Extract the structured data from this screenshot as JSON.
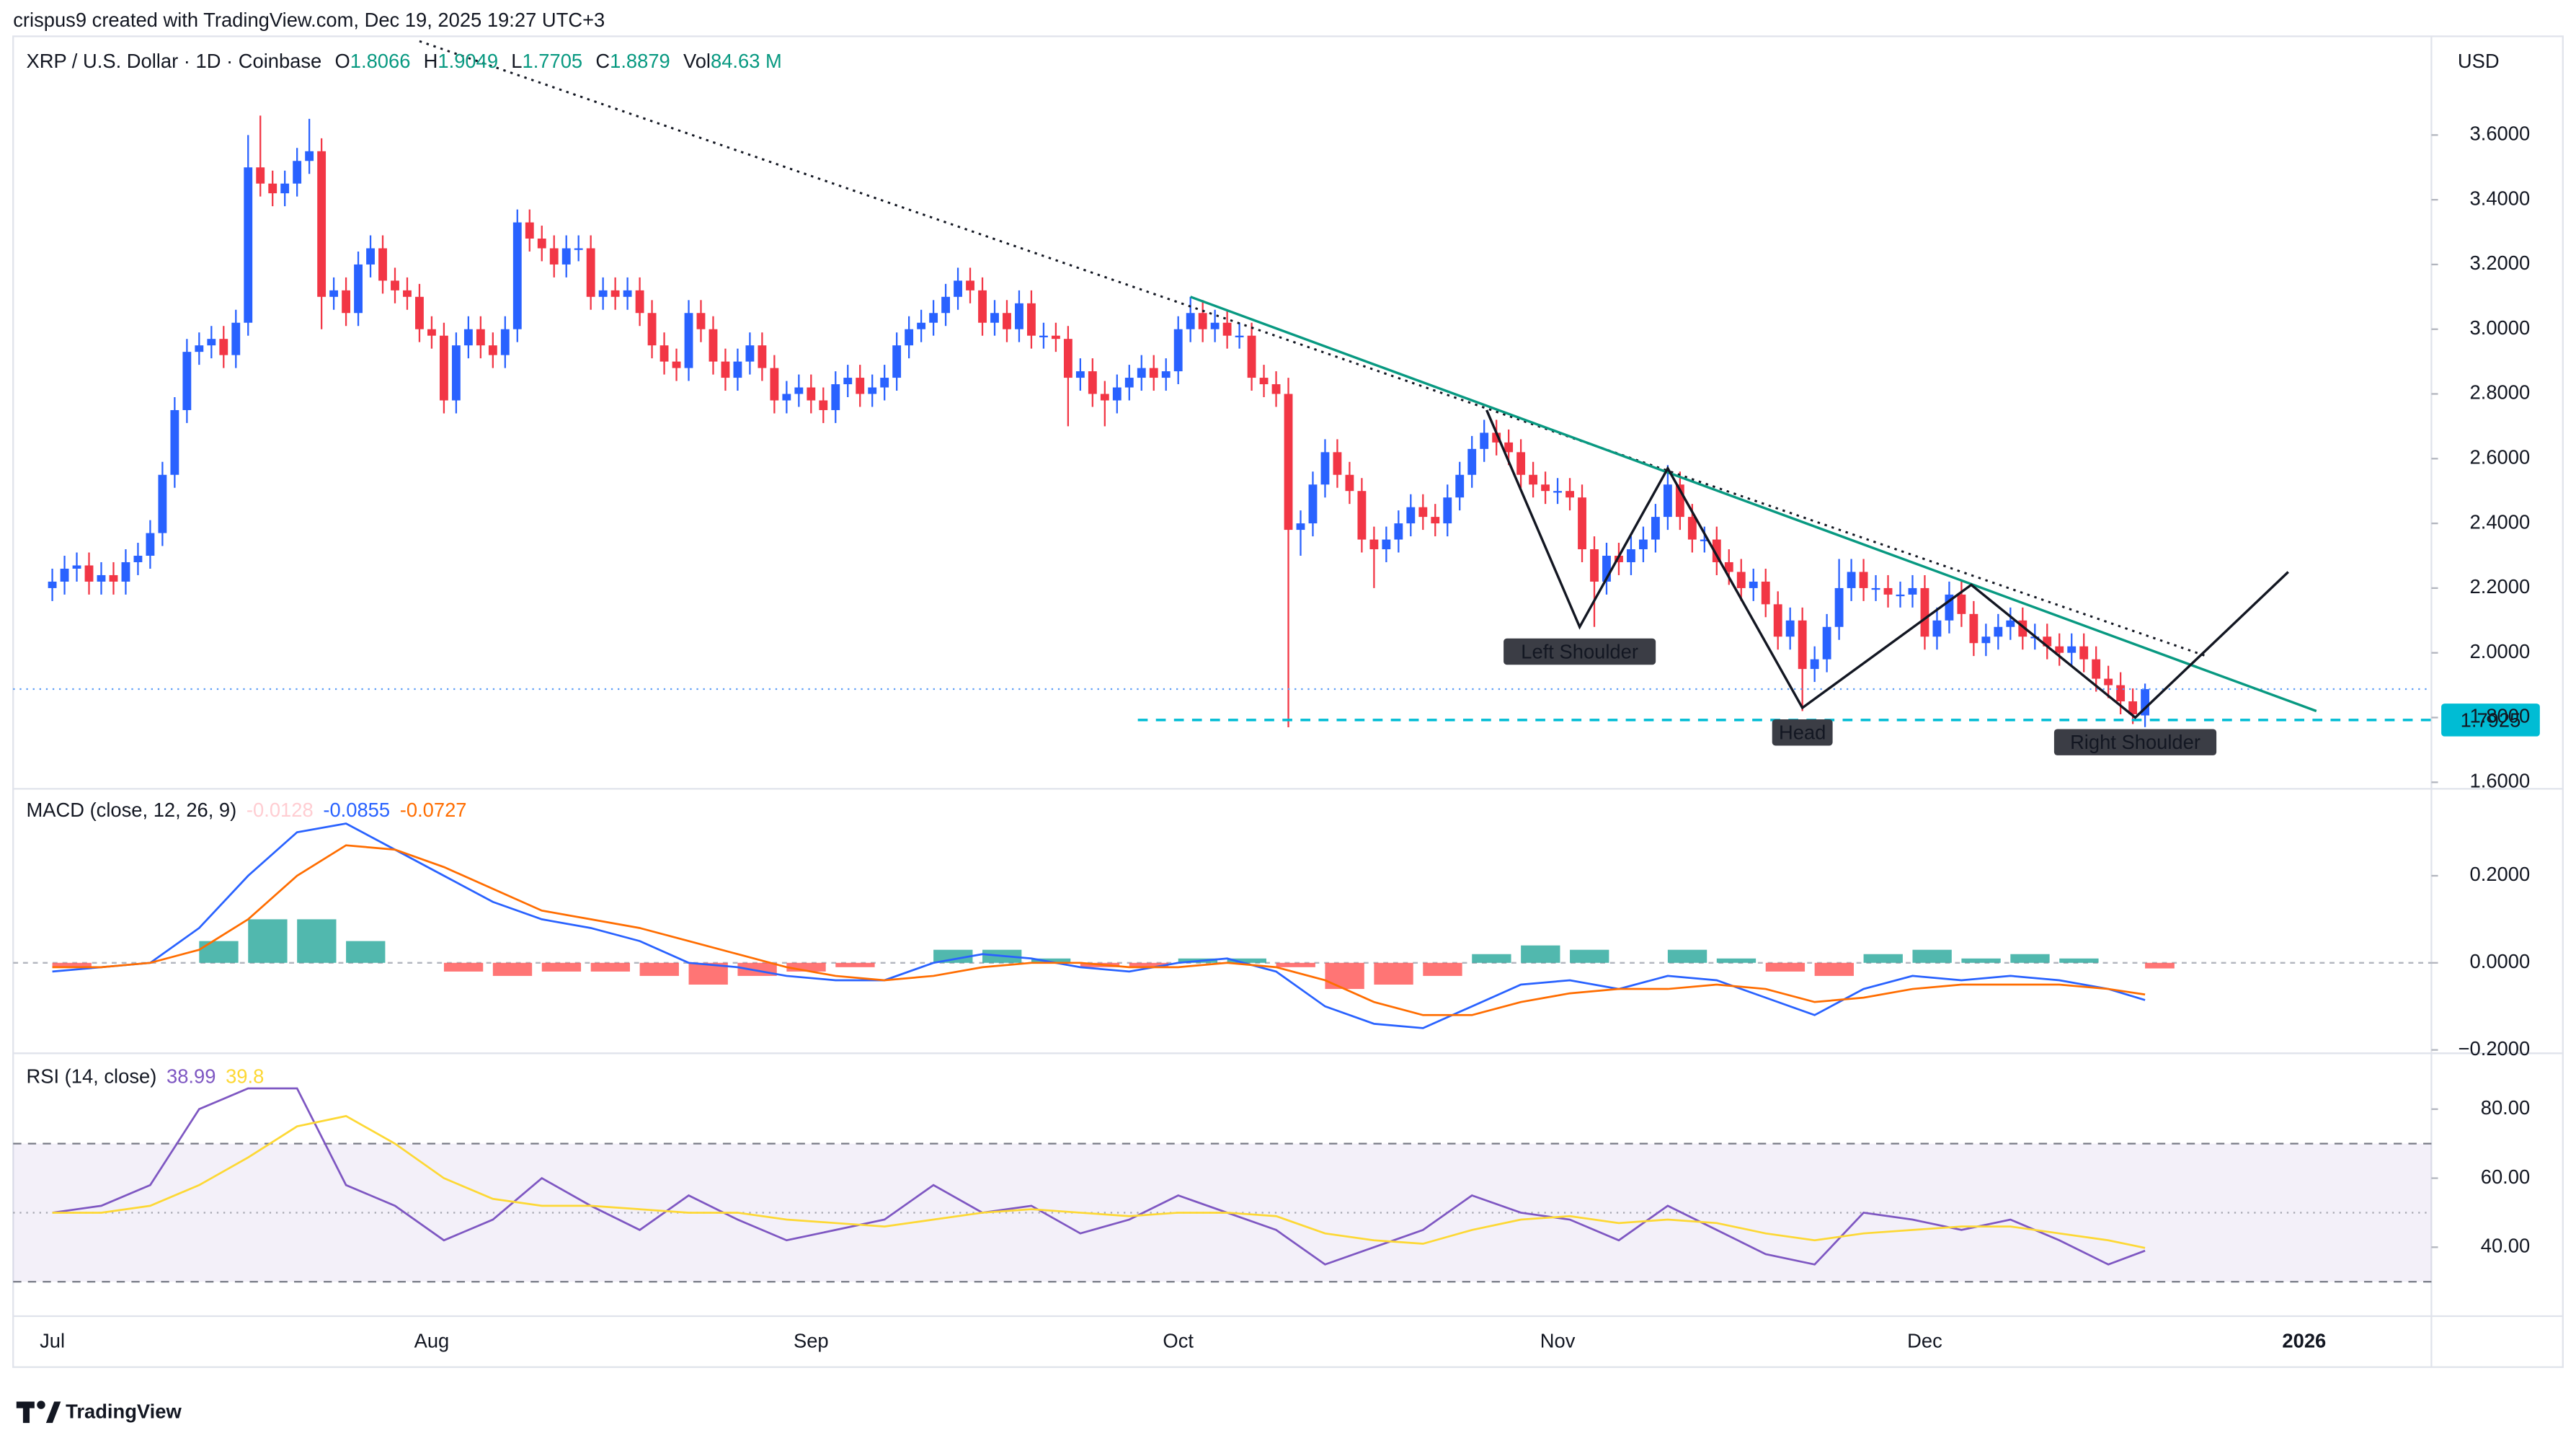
{
  "header": {
    "author_line": "crispus9 created with TradingView.com, Dec 19, 2025 19:27 UTC+3",
    "brand": "TradingView"
  },
  "chart_data": [
    {
      "type": "candlestick",
      "title": "XRP / U.S. Dollar · 1D · Coinbase",
      "currency": "USD",
      "ohlc_labels": [
        "O",
        "H",
        "L",
        "C"
      ],
      "volume_label": "Vol",
      "volume": "84.63 M",
      "up_color": "#2962ff",
      "down_color": "#f23645",
      "value_color": "#089981",
      "open": [
        2.2,
        2.22,
        2.26,
        2.27,
        2.22,
        2.24,
        2.22,
        2.28,
        2.3,
        2.37,
        2.55,
        2.75,
        2.93,
        2.95,
        2.97,
        2.92,
        3.02,
        3.5,
        3.45,
        3.42,
        3.45,
        3.52,
        3.55,
        3.1,
        3.12,
        3.05,
        3.2,
        3.25,
        3.15,
        3.12,
        3.1,
        3.0,
        2.98,
        2.78,
        2.95,
        3.0,
        2.95,
        2.92,
        3.0,
        3.33,
        3.28,
        3.25,
        3.2,
        3.25,
        3.25,
        3.1,
        3.12,
        3.1,
        3.12,
        3.05,
        2.95,
        2.9,
        2.88,
        3.05,
        3.0,
        2.9,
        2.85,
        2.9,
        2.95,
        2.88,
        2.78,
        2.8,
        2.82,
        2.78,
        2.75,
        2.83,
        2.85,
        2.8,
        2.82,
        2.85,
        2.95,
        3.0,
        3.02,
        3.05,
        3.1,
        3.15,
        3.12,
        3.02,
        3.05,
        3.0,
        3.08,
        2.98,
        2.98,
        2.97,
        2.85,
        2.87,
        2.8,
        2.78,
        2.82,
        2.85,
        2.88,
        2.85,
        2.87,
        3.0,
        3.05,
        3.0,
        3.02,
        2.98,
        2.98,
        2.85,
        2.83,
        2.8,
        2.38,
        2.4,
        2.52,
        2.62,
        2.55,
        2.5,
        2.35,
        2.32,
        2.35,
        2.4,
        2.45,
        2.42,
        2.4,
        2.48,
        2.55,
        2.63,
        2.68,
        2.65,
        2.62,
        2.55,
        2.52,
        2.5,
        2.5,
        2.48,
        2.32,
        2.22,
        2.3,
        2.28,
        2.32,
        2.35,
        2.42,
        2.52,
        2.42,
        2.35,
        2.35,
        2.28,
        2.25,
        2.2,
        2.22,
        2.15,
        2.05,
        2.1,
        1.95,
        1.98,
        2.08,
        2.2,
        2.25,
        2.2,
        2.2,
        2.18,
        2.18,
        2.2,
        2.05,
        2.1,
        2.18,
        2.12,
        2.03,
        2.05,
        2.08,
        2.1,
        2.05,
        2.05,
        2.02,
        2.0,
        2.02,
        1.98,
        1.92,
        1.9,
        1.85,
        1.8066
      ],
      "high": [
        2.26,
        2.3,
        2.31,
        2.31,
        2.28,
        2.28,
        2.32,
        2.34,
        2.41,
        2.59,
        2.79,
        2.97,
        2.99,
        3.01,
        3.01,
        3.06,
        3.6,
        3.66,
        3.49,
        3.49,
        3.56,
        3.65,
        3.59,
        3.16,
        3.16,
        3.24,
        3.29,
        3.29,
        3.19,
        3.16,
        3.14,
        3.04,
        3.02,
        2.99,
        3.04,
        3.04,
        2.99,
        3.04,
        3.37,
        3.37,
        3.32,
        3.29,
        3.29,
        3.29,
        3.29,
        3.16,
        3.16,
        3.16,
        3.16,
        3.09,
        2.99,
        2.94,
        3.09,
        3.09,
        3.04,
        2.94,
        2.94,
        2.99,
        2.99,
        2.92,
        2.84,
        2.86,
        2.86,
        2.82,
        2.87,
        2.89,
        2.89,
        2.86,
        2.89,
        2.99,
        3.04,
        3.06,
        3.09,
        3.14,
        3.19,
        3.19,
        3.16,
        3.09,
        3.09,
        3.12,
        3.12,
        3.02,
        3.02,
        3.01,
        2.91,
        2.91,
        2.84,
        2.86,
        2.89,
        2.92,
        2.92,
        2.91,
        3.04,
        3.1,
        3.09,
        3.06,
        3.06,
        3.02,
        3.02,
        2.89,
        2.87,
        2.85,
        2.44,
        2.56,
        2.66,
        2.66,
        2.59,
        2.54,
        2.39,
        2.39,
        2.44,
        2.49,
        2.49,
        2.46,
        2.52,
        2.59,
        2.67,
        2.72,
        2.72,
        2.69,
        2.66,
        2.59,
        2.56,
        2.54,
        2.54,
        2.52,
        2.36,
        2.34,
        2.34,
        2.36,
        2.39,
        2.46,
        2.58,
        2.56,
        2.46,
        2.39,
        2.39,
        2.32,
        2.29,
        2.26,
        2.26,
        2.19,
        2.14,
        2.14,
        2.02,
        2.12,
        2.29,
        2.29,
        2.29,
        2.24,
        2.24,
        2.22,
        2.24,
        2.24,
        2.14,
        2.22,
        2.22,
        2.16,
        2.09,
        2.12,
        2.14,
        2.14,
        2.09,
        2.09,
        2.06,
        2.06,
        2.06,
        2.02,
        1.96,
        1.94,
        1.89,
        1.9049
      ],
      "low": [
        2.16,
        2.18,
        2.22,
        2.18,
        2.18,
        2.18,
        2.18,
        2.24,
        2.26,
        2.33,
        2.51,
        2.71,
        2.89,
        2.91,
        2.88,
        2.88,
        2.98,
        3.41,
        3.38,
        3.38,
        3.41,
        3.48,
        3.0,
        3.06,
        3.01,
        3.01,
        3.16,
        3.11,
        3.08,
        3.06,
        2.96,
        2.94,
        2.74,
        2.74,
        2.91,
        2.91,
        2.88,
        2.88,
        2.96,
        3.24,
        3.21,
        3.16,
        3.16,
        3.21,
        3.06,
        3.06,
        3.06,
        3.06,
        3.01,
        2.91,
        2.86,
        2.84,
        2.84,
        2.96,
        2.86,
        2.81,
        2.81,
        2.86,
        2.84,
        2.74,
        2.74,
        2.76,
        2.74,
        2.71,
        2.71,
        2.79,
        2.76,
        2.76,
        2.78,
        2.81,
        2.91,
        2.96,
        2.98,
        3.01,
        3.06,
        3.08,
        2.98,
        2.98,
        2.96,
        2.96,
        2.94,
        2.94,
        2.93,
        2.7,
        2.81,
        2.76,
        2.7,
        2.74,
        2.78,
        2.81,
        2.81,
        2.81,
        2.83,
        2.96,
        2.96,
        2.96,
        2.94,
        2.94,
        2.81,
        2.79,
        2.76,
        1.77,
        2.3,
        2.36,
        2.48,
        2.51,
        2.46,
        2.31,
        2.2,
        2.28,
        2.31,
        2.36,
        2.38,
        2.36,
        2.36,
        2.44,
        2.51,
        2.59,
        2.61,
        2.58,
        2.51,
        2.48,
        2.46,
        2.46,
        2.44,
        2.28,
        2.08,
        2.18,
        2.24,
        2.24,
        2.28,
        2.31,
        2.38,
        2.38,
        2.31,
        2.31,
        2.24,
        2.21,
        2.16,
        2.16,
        2.11,
        2.01,
        2.01,
        1.82,
        1.91,
        1.94,
        2.04,
        2.16,
        2.16,
        2.16,
        2.14,
        2.14,
        2.14,
        2.01,
        2.01,
        2.06,
        2.08,
        1.99,
        1.99,
        2.01,
        2.04,
        2.01,
        2.01,
        1.98,
        1.96,
        1.96,
        1.94,
        1.88,
        1.86,
        1.81,
        1.78,
        1.7705
      ],
      "close": [
        2.22,
        2.26,
        2.27,
        2.22,
        2.24,
        2.22,
        2.28,
        2.3,
        2.37,
        2.55,
        2.75,
        2.93,
        2.95,
        2.97,
        2.92,
        3.02,
        3.5,
        3.45,
        3.42,
        3.45,
        3.52,
        3.55,
        3.1,
        3.12,
        3.05,
        3.2,
        3.25,
        3.15,
        3.12,
        3.1,
        3.0,
        2.98,
        2.78,
        2.95,
        3.0,
        2.95,
        2.92,
        3.0,
        3.33,
        3.28,
        3.25,
        3.2,
        3.25,
        3.25,
        3.1,
        3.12,
        3.1,
        3.12,
        3.05,
        2.95,
        2.9,
        2.88,
        3.05,
        3.0,
        2.9,
        2.85,
        2.9,
        2.95,
        2.88,
        2.78,
        2.8,
        2.82,
        2.78,
        2.75,
        2.83,
        2.85,
        2.8,
        2.82,
        2.85,
        2.95,
        3.0,
        3.02,
        3.05,
        3.1,
        3.15,
        3.12,
        3.02,
        3.05,
        3.0,
        3.08,
        2.98,
        2.98,
        2.97,
        2.85,
        2.87,
        2.8,
        2.78,
        2.82,
        2.85,
        2.88,
        2.85,
        2.87,
        3.0,
        3.05,
        3.0,
        3.02,
        2.98,
        2.98,
        2.85,
        2.83,
        2.8,
        2.38,
        2.4,
        2.52,
        2.62,
        2.55,
        2.5,
        2.35,
        2.32,
        2.35,
        2.4,
        2.45,
        2.42,
        2.4,
        2.48,
        2.55,
        2.63,
        2.68,
        2.65,
        2.62,
        2.55,
        2.52,
        2.5,
        2.5,
        2.48,
        2.32,
        2.22,
        2.3,
        2.28,
        2.32,
        2.35,
        2.42,
        2.52,
        2.42,
        2.35,
        2.35,
        2.28,
        2.25,
        2.2,
        2.22,
        2.15,
        2.05,
        2.1,
        1.95,
        1.98,
        2.08,
        2.2,
        2.25,
        2.2,
        2.2,
        2.18,
        2.18,
        2.2,
        2.05,
        2.1,
        2.18,
        2.12,
        2.03,
        2.05,
        2.08,
        2.1,
        2.05,
        2.05,
        2.02,
        2.0,
        2.02,
        1.98,
        1.92,
        1.9,
        1.85,
        1.81,
        1.8879
      ],
      "xlim": [
        -3.2,
        194.4
      ],
      "ylim": [
        1.59,
        3.905
      ],
      "xticks": [
        {
          "value": 0,
          "label": "Jul"
        },
        {
          "value": 31,
          "label": "Aug"
        },
        {
          "value": 62,
          "label": "Sep"
        },
        {
          "value": 92,
          "label": "Oct"
        },
        {
          "value": 123,
          "label": "Nov"
        },
        {
          "value": 153,
          "label": "Dec"
        },
        {
          "value": 184,
          "label": "2026"
        }
      ],
      "yticks": [
        {
          "value": 1.6,
          "label": "1.6000"
        },
        {
          "value": 1.8,
          "label": "1.8000"
        },
        {
          "value": 2,
          "label": "2.0000"
        },
        {
          "value": 2.2,
          "label": "2.2000"
        },
        {
          "value": 2.4,
          "label": "2.4000"
        },
        {
          "value": 2.6,
          "label": "2.6000"
        },
        {
          "value": 2.8,
          "label": "2.8000"
        },
        {
          "value": 3,
          "label": "3.0000"
        },
        {
          "value": 3.2,
          "label": "3.2000"
        },
        {
          "value": 3.4,
          "label": "3.4000"
        },
        {
          "value": 3.6,
          "label": "3.6000"
        }
      ],
      "levels": [
        {
          "value": 1.7925,
          "from": 88.7,
          "color": "#00bcd4"
        }
      ],
      "trendlines": [
        {
          "style": "dotted",
          "color": "#131722",
          "points": [
            [
              30,
              3.89
            ],
            [
              176,
              1.99
            ]
          ]
        },
        {
          "style": "solid",
          "color": "#089981",
          "points": [
            [
              93,
              3.1
            ],
            [
              185,
              1.82
            ]
          ]
        },
        {
          "style": "solid",
          "color": "#131722",
          "points": [
            [
              117.2,
              2.75
            ],
            [
              124.8,
              2.08
            ],
            [
              132,
              2.57
            ],
            [
              143,
              1.83
            ],
            [
              156.8,
              2.21
            ],
            [
              170.2,
              1.8
            ],
            [
              182.7,
              2.25
            ]
          ]
        }
      ],
      "annotations": [
        {
          "text": "Left Shoulder",
          "x": 124.8,
          "y": 2.08
        },
        {
          "text": "Head",
          "x": 143,
          "y": 1.83
        },
        {
          "text": "Right Shoulder",
          "x": 170.2,
          "y": 1.8
        }
      ]
    },
    {
      "type": "macd",
      "title": "MACD (close, 12, 26, 9)",
      "x": [
        0,
        4,
        8,
        12,
        16,
        20,
        24,
        28,
        32,
        36,
        40,
        44,
        48,
        52,
        56,
        60,
        64,
        68,
        72,
        76,
        80,
        84,
        88,
        92,
        96,
        100,
        104,
        108,
        112,
        116,
        120,
        124,
        128,
        132,
        136,
        140,
        144,
        148,
        152,
        156,
        160,
        164,
        168,
        171
      ],
      "series": [
        {
          "style": "bar",
          "color": "#ffcdd2",
          "color_up": "#26a69a",
          "color_down": "#ff5252",
          "values": [
            -0.01,
            0,
            0,
            0.05,
            0.1,
            0.1,
            0.05,
            0,
            -0.02,
            -0.03,
            -0.02,
            -0.02,
            -0.03,
            -0.05,
            -0.03,
            -0.02,
            -0.01,
            0,
            0.03,
            0.03,
            0.01,
            -0.01,
            -0.01,
            0.01,
            0.01,
            -0.01,
            -0.06,
            -0.05,
            -0.03,
            0.02,
            0.04,
            0.03,
            0,
            0.03,
            0.01,
            -0.02,
            -0.03,
            0.02,
            0.03,
            0.01,
            0.02,
            0.01,
            0,
            -0.0128
          ]
        },
        {
          "style": "line",
          "color": "#2962ff",
          "values": [
            -0.02,
            -0.01,
            0,
            0.08,
            0.2,
            0.3,
            0.32,
            0.26,
            0.2,
            0.14,
            0.1,
            0.08,
            0.05,
            0,
            -0.01,
            -0.03,
            -0.04,
            -0.04,
            0,
            0.02,
            0.01,
            -0.01,
            -0.02,
            0,
            0.01,
            -0.02,
            -0.1,
            -0.14,
            -0.15,
            -0.1,
            -0.05,
            -0.04,
            -0.06,
            -0.03,
            -0.04,
            -0.08,
            -0.12,
            -0.06,
            -0.03,
            -0.04,
            -0.03,
            -0.04,
            -0.06,
            -0.0855
          ]
        },
        {
          "style": "line",
          "color": "#ff6d00",
          "values": [
            -0.01,
            -0.01,
            0,
            0.03,
            0.1,
            0.2,
            0.27,
            0.26,
            0.22,
            0.17,
            0.12,
            0.1,
            0.08,
            0.05,
            0.02,
            -0.01,
            -0.03,
            -0.04,
            -0.03,
            -0.01,
            0,
            0,
            -0.01,
            -0.01,
            0,
            -0.01,
            -0.04,
            -0.09,
            -0.12,
            -0.12,
            -0.09,
            -0.07,
            -0.06,
            -0.06,
            -0.05,
            -0.06,
            -0.09,
            -0.08,
            -0.06,
            -0.05,
            -0.05,
            -0.05,
            -0.06,
            -0.0727
          ]
        }
      ],
      "baseline": 0,
      "ylim": [
        -0.204,
        0.396
      ],
      "yticks": [
        {
          "value": -0.2,
          "label": "−0.2000"
        },
        {
          "value": 0,
          "label": "0.0000"
        },
        {
          "value": 0.2,
          "label": "0.2000"
        }
      ]
    },
    {
      "type": "rsi",
      "title": "RSI (14, close)",
      "x": [
        0,
        4,
        8,
        12,
        16,
        20,
        24,
        28,
        32,
        36,
        40,
        44,
        48,
        52,
        56,
        60,
        64,
        68,
        72,
        76,
        80,
        84,
        88,
        92,
        96,
        100,
        104,
        108,
        112,
        116,
        120,
        124,
        128,
        132,
        136,
        140,
        144,
        148,
        152,
        156,
        160,
        164,
        168,
        171
      ],
      "series": [
        {
          "style": "line",
          "color": "#7e57c2",
          "values": [
            50,
            52,
            58,
            80,
            86,
            86,
            58,
            52,
            42,
            48,
            60,
            52,
            45,
            55,
            48,
            42,
            45,
            48,
            58,
            50,
            52,
            44,
            48,
            55,
            50,
            45,
            35,
            40,
            45,
            55,
            50,
            48,
            42,
            52,
            45,
            38,
            35,
            50,
            48,
            45,
            48,
            42,
            35,
            38.99
          ]
        },
        {
          "style": "line",
          "color": "#fdd835",
          "values": [
            50,
            50,
            52,
            58,
            66,
            75,
            78,
            70,
            60,
            54,
            52,
            52,
            51,
            50,
            50,
            48,
            47,
            46,
            48,
            50,
            51,
            50,
            49,
            50,
            50,
            49,
            44,
            42,
            41,
            45,
            48,
            49,
            47,
            48,
            47,
            44,
            42,
            44,
            45,
            46,
            46,
            44,
            42,
            39.8
          ]
        }
      ],
      "band": [
        30,
        70
      ],
      "midline": 50,
      "ylim": [
        20.5,
        95.7
      ],
      "yticks": [
        {
          "value": 40,
          "label": "40.00"
        },
        {
          "value": 60,
          "label": "60.00"
        },
        {
          "value": 80,
          "label": "80.00"
        }
      ]
    }
  ]
}
